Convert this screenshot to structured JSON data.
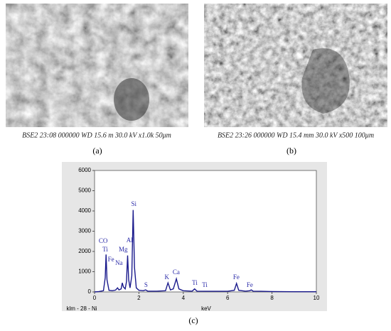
{
  "panels": [
    {
      "caption": "BSE2 23:08 000000 WD 15.6 m 30.0 kV  x1.0k  50μm",
      "label": "(a)"
    },
    {
      "caption": "BSE2 23:26 000000 WD 15.4 mm 30.0 kV x500   100μm",
      "label": "(b)"
    }
  ],
  "chart_data": {
    "type": "line",
    "label": "(c)",
    "x_label": "keV",
    "note": "klm - 28 - Ni",
    "x": [
      0,
      0.2,
      0.4,
      0.48,
      0.52,
      0.56,
      0.65,
      0.8,
      0.95,
      1.04,
      1.1,
      1.2,
      1.25,
      1.3,
      1.38,
      1.44,
      1.49,
      1.54,
      1.6,
      1.68,
      1.74,
      1.8,
      1.88,
      2.0,
      2.2,
      2.3,
      2.4,
      2.8,
      3.2,
      3.31,
      3.42,
      3.55,
      3.69,
      3.8,
      4.0,
      4.4,
      4.51,
      4.62,
      5.0,
      5.5,
      6.0,
      6.3,
      6.4,
      6.5,
      6.8,
      7.0,
      7.06,
      7.15,
      7.5,
      8,
      9,
      10
    ],
    "values": [
      0,
      20,
      60,
      700,
      1850,
      600,
      80,
      60,
      90,
      200,
      100,
      150,
      450,
      250,
      150,
      500,
      1800,
      600,
      200,
      800,
      4050,
      1200,
      200,
      80,
      60,
      100,
      40,
      40,
      60,
      450,
      100,
      150,
      650,
      150,
      60,
      40,
      150,
      40,
      30,
      30,
      30,
      80,
      420,
      80,
      40,
      60,
      100,
      40,
      30,
      20,
      10,
      10
    ],
    "color": "#1a1a8c",
    "xlim": [
      0,
      10
    ],
    "xticks": [
      0,
      2,
      4,
      6,
      8,
      10
    ],
    "ylim": [
      0,
      6000
    ],
    "yticks": [
      0,
      1000,
      2000,
      3000,
      4000,
      5000,
      6000
    ],
    "annotations": [
      {
        "text": "CO",
        "x": 0.39,
        "y": 2490
      },
      {
        "text": "Ti",
        "x": 0.48,
        "y": 2070
      },
      {
        "text": "Fe",
        "x": 0.74,
        "y": 1580
      },
      {
        "text": "Na",
        "x": 1.1,
        "y": 1400
      },
      {
        "text": "Mg",
        "x": 1.29,
        "y": 2070
      },
      {
        "text": "Al",
        "x": 1.58,
        "y": 2530
      },
      {
        "text": "Si",
        "x": 1.77,
        "y": 4320
      },
      {
        "text": "S",
        "x": 2.32,
        "y": 316
      },
      {
        "text": "K",
        "x": 3.26,
        "y": 700
      },
      {
        "text": "Ca",
        "x": 3.68,
        "y": 950
      },
      {
        "text": "Ti",
        "x": 4.52,
        "y": 420
      },
      {
        "text": "Ti",
        "x": 4.97,
        "y": 316
      },
      {
        "text": "Fe",
        "x": 6.39,
        "y": 700
      },
      {
        "text": "Fe",
        "x": 7.0,
        "y": 316
      }
    ]
  }
}
